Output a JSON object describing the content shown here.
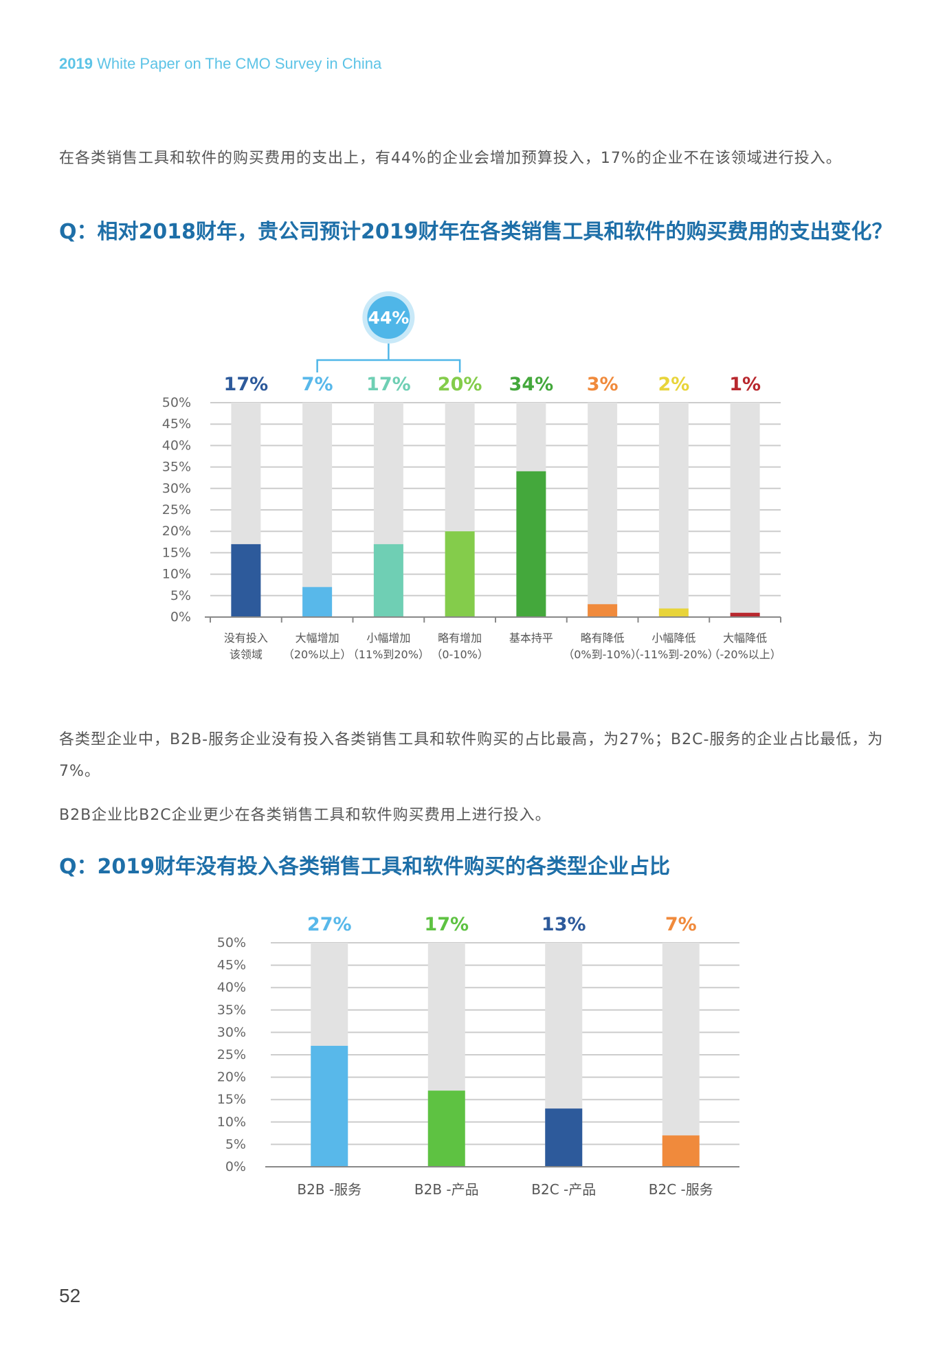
{
  "header": {
    "year": "2019",
    "title": " White Paper on The CMO Survey in China"
  },
  "intro1": "在各类销售工具和软件的购买费用的支出上，有44%的企业会增加预算投入，17%的企业不在该领域进行投入。",
  "question1": "Q：相对2018财年，贵公司预计2019财年在各类销售工具和软件的购买费用的支出变化？",
  "intro2": "各类型企业中，B2B-服务企业没有投入各类销售工具和软件购买的占比最高，为27%；B2C-服务的企业占比最低，为7%。",
  "intro3": "B2B企业比B2C企业更少在各类销售工具和软件购买费用上进行投入。",
  "question2": "Q：2019财年没有投入各类销售工具和软件购买的各类型企业占比",
  "page_number": "52",
  "chart_data": [
    {
      "type": "bar",
      "ylim": [
        0,
        50
      ],
      "yticks": [
        "0%",
        "5%",
        "10%",
        "15%",
        "20%",
        "25%",
        "30%",
        "35%",
        "40%",
        "45%",
        "50%"
      ],
      "categories": [
        [
          "没有投入",
          "该领域"
        ],
        [
          "大幅增加",
          "（20%以上）"
        ],
        [
          "小幅增加",
          "（11%到20%）"
        ],
        [
          "略有增加",
          "（0-10%）"
        ],
        [
          "基本持平"
        ],
        [
          "略有降低",
          "（0%到-10%）"
        ],
        [
          "小幅降低",
          "（-11%到-20%）"
        ],
        [
          "大幅降低",
          "（-20%以上）"
        ]
      ],
      "values": [
        17,
        7,
        17,
        20,
        34,
        3,
        2,
        1
      ],
      "value_labels": [
        "17%",
        "7%",
        "17%",
        "20%",
        "34%",
        "3%",
        "2%",
        "1%"
      ],
      "colors": [
        "#2d5a9b",
        "#58b8ea",
        "#6fcfb4",
        "#84cc4b",
        "#44a83c",
        "#f08a3c",
        "#e8d43a",
        "#b8282e"
      ],
      "background_bar_color": "#e2e2e2",
      "grid": true,
      "annotation": {
        "text": "44%",
        "spans_categories": [
          1,
          3
        ],
        "color": "#4fb6e8"
      }
    },
    {
      "type": "bar",
      "ylim": [
        0,
        50
      ],
      "yticks": [
        "0%",
        "5%",
        "10%",
        "15%",
        "20%",
        "25%",
        "30%",
        "35%",
        "40%",
        "45%",
        "50%"
      ],
      "categories": [
        "B2B -服务",
        "B2B -产品",
        "B2C -产品",
        "B2C -服务"
      ],
      "values": [
        27,
        17,
        13,
        7
      ],
      "value_labels": [
        "27%",
        "17%",
        "13%",
        "7%"
      ],
      "colors": [
        "#58b8ea",
        "#5ec242",
        "#2d5a9b",
        "#f08a3c"
      ],
      "background_bar_color": "#e2e2e2",
      "grid": true
    }
  ]
}
